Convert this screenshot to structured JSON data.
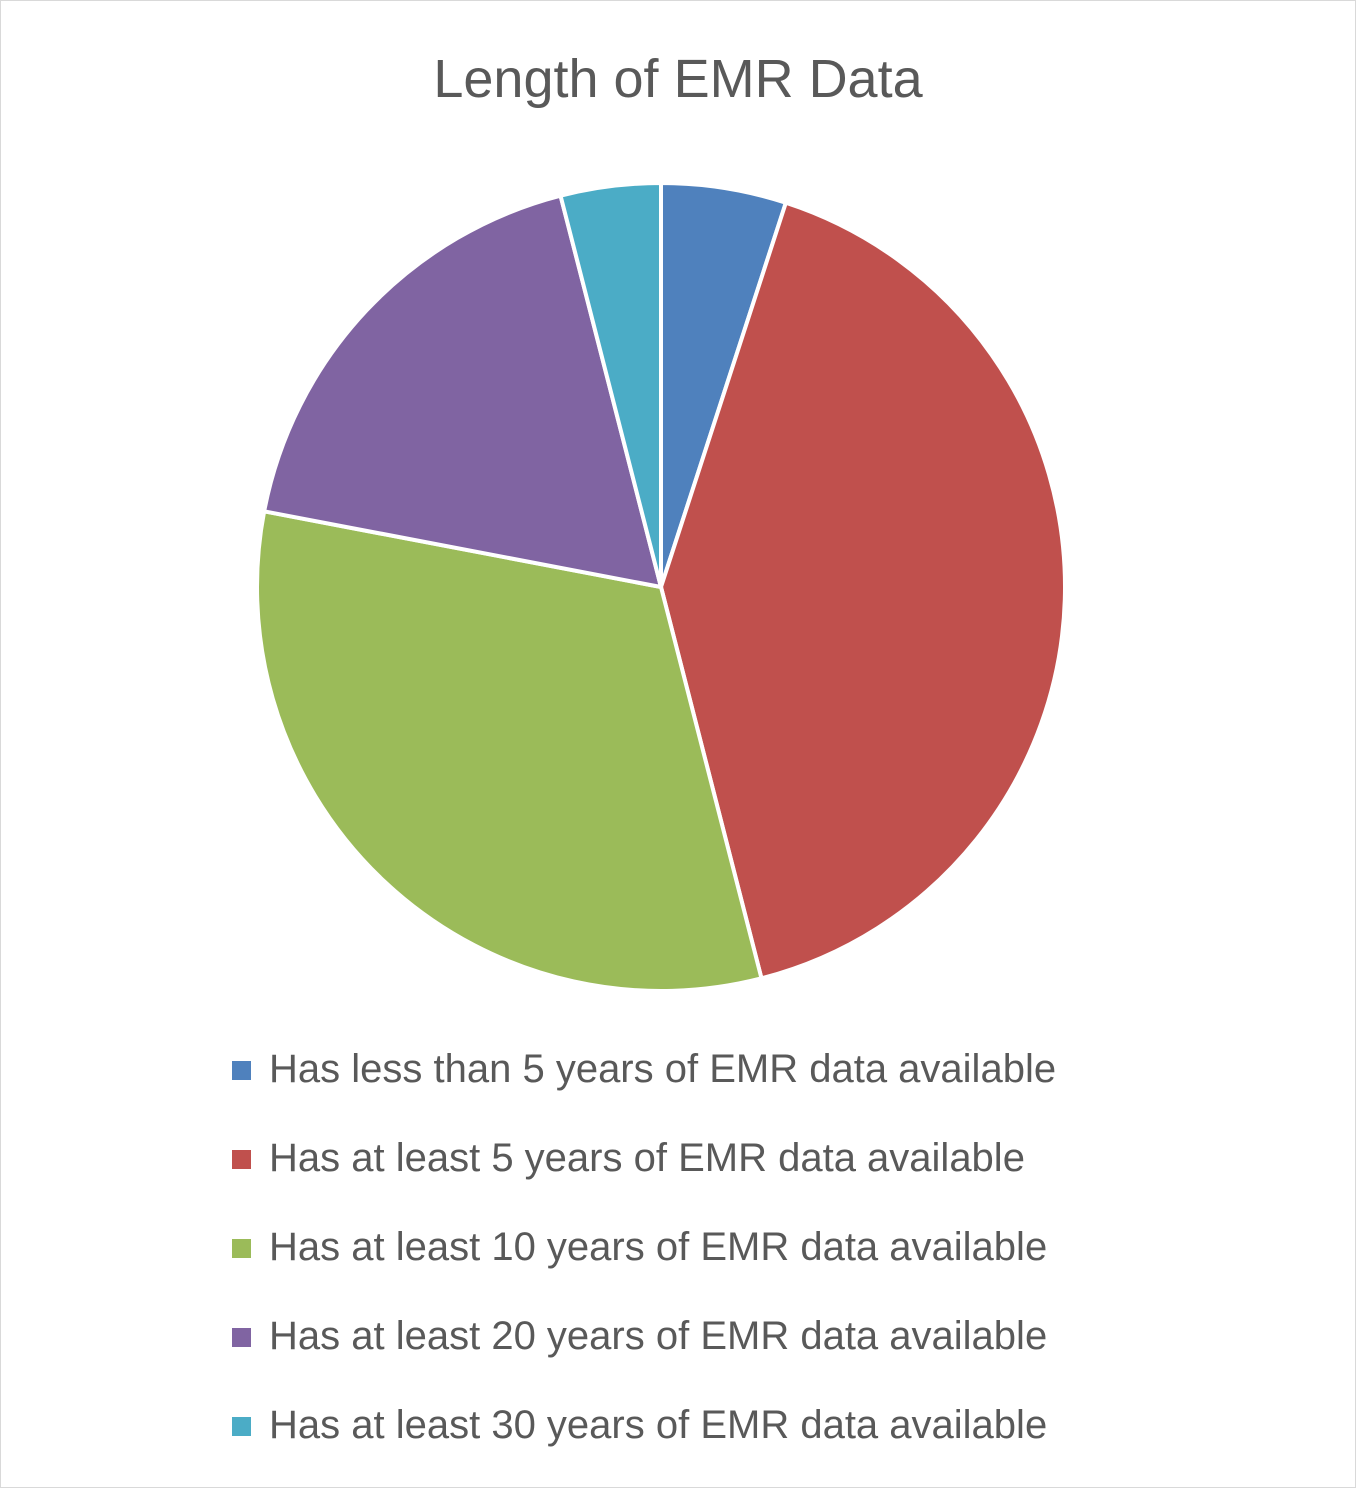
{
  "chart_data": {
    "type": "pie",
    "title": "Length of EMR Data",
    "slices": [
      {
        "label": "Has less than 5 years of EMR data available",
        "value": 5,
        "color": "#4F81BD"
      },
      {
        "label": "Has at least 5 years of EMR data available",
        "value": 41,
        "color": "#C0504D"
      },
      {
        "label": "Has at least 10 years of EMR data available",
        "value": 32,
        "color": "#9BBB59"
      },
      {
        "label": "Has at least 20 years of EMR data available",
        "value": 18,
        "color": "#8064A2"
      },
      {
        "label": "Has at least 30 years of EMR data available",
        "value": 4,
        "color": "#4BACC6"
      }
    ],
    "legend_position": "bottom"
  }
}
